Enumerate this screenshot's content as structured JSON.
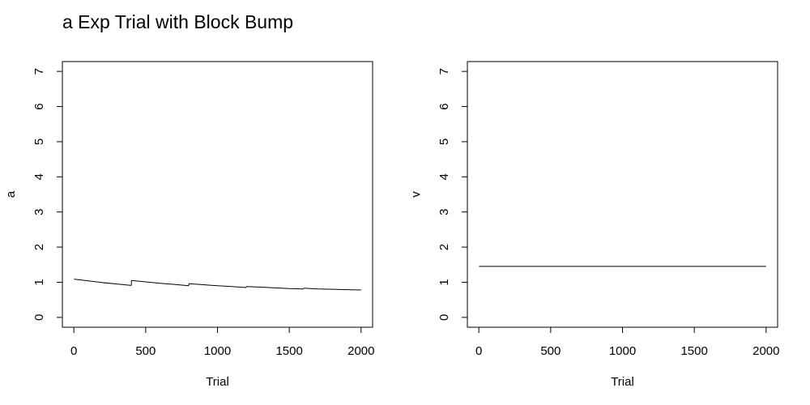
{
  "page_title": "a Exp Trial with Block Bump",
  "chart_data": [
    {
      "type": "line",
      "xlabel": "Trial",
      "ylabel": "a",
      "xlim": [
        -80,
        2080
      ],
      "ylim": [
        -0.28,
        7.28
      ],
      "xticks": [
        0,
        500,
        1000,
        1500,
        2000
      ],
      "yticks": [
        0,
        1,
        2,
        3,
        4,
        5,
        6,
        7
      ],
      "grid": false,
      "line_color": "#000000",
      "segments": [
        {
          "x": [
            1,
            100,
            200,
            300,
            400
          ],
          "y": [
            1.09,
            1.04,
            0.99,
            0.95,
            0.91
          ]
        },
        {
          "x": [
            401,
            500,
            600,
            700,
            800
          ],
          "y": [
            1.05,
            1.01,
            0.97,
            0.94,
            0.9
          ]
        },
        {
          "x": [
            801,
            900,
            1000,
            1100,
            1200
          ],
          "y": [
            0.96,
            0.93,
            0.9,
            0.88,
            0.85
          ]
        },
        {
          "x": [
            1201,
            1300,
            1400,
            1500,
            1600
          ],
          "y": [
            0.88,
            0.86,
            0.84,
            0.82,
            0.81
          ]
        },
        {
          "x": [
            1601,
            1700,
            1800,
            1900,
            2000
          ],
          "y": [
            0.83,
            0.81,
            0.8,
            0.79,
            0.78
          ]
        }
      ]
    },
    {
      "type": "line",
      "xlabel": "Trial",
      "ylabel": "v",
      "xlim": [
        -80,
        2080
      ],
      "ylim": [
        -0.28,
        7.28
      ],
      "xticks": [
        0,
        500,
        1000,
        1500,
        2000
      ],
      "yticks": [
        0,
        1,
        2,
        3,
        4,
        5,
        6,
        7
      ],
      "grid": false,
      "line_color": "#000000",
      "segments": [
        {
          "x": [
            1,
            2000
          ],
          "y": [
            1.45,
            1.45
          ]
        }
      ]
    }
  ]
}
